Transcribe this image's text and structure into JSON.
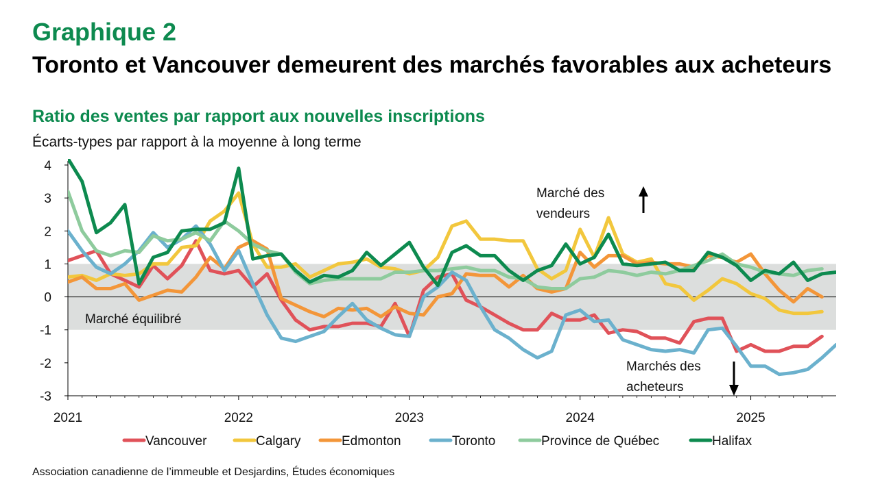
{
  "header": {
    "label": "Graphique 2",
    "title": "Toronto et Vancouver demeurent des marchés favorables aux acheteurs",
    "subtitle": "Ratio des ventes par rapport aux nouvelles inscriptions",
    "unit": "Écarts-types par rapport à la moyenne à long terme"
  },
  "source": "Association canadienne de l’immeuble et Desjardins, Études économiques",
  "chart_data": {
    "type": "line",
    "x_start": "2021-01",
    "frequency": "monthly",
    "x_ticks": [
      "2021",
      "2022",
      "2023",
      "2024",
      "2025"
    ],
    "y_ticks": [
      "4",
      "3",
      "2",
      "1",
      "0",
      "-1",
      "-2",
      "-3"
    ],
    "ylim": [
      -3,
      4
    ],
    "band": {
      "from": -1,
      "to": 1,
      "label": "Marché équilibré",
      "color": "#dcdedd"
    },
    "annotations": {
      "sellers": [
        "Marché des",
        "vendeurs"
      ],
      "buyers": [
        "Marchés des",
        "acheteurs"
      ]
    },
    "legend_position": "bottom",
    "series": [
      {
        "name": "Vancouver",
        "color": "#e05259",
        "values": [
          1.1,
          1.25,
          1.4,
          0.7,
          0.5,
          0.3,
          0.95,
          0.55,
          0.95,
          1.7,
          0.8,
          0.7,
          0.8,
          0.3,
          0.7,
          -0.1,
          -0.7,
          -1.0,
          -0.9,
          -0.9,
          -0.8,
          -0.8,
          -0.9,
          -0.2,
          -1.2,
          0.2,
          0.6,
          0.7,
          -0.1,
          -0.3,
          -0.55,
          -0.8,
          -1.0,
          -1.0,
          -0.5,
          -0.7,
          -0.7,
          -0.55,
          -1.1,
          -1.0,
          -1.05,
          -1.25,
          -1.25,
          -1.4,
          -0.75,
          -0.65,
          -0.65,
          -1.65,
          -1.45,
          -1.65,
          -1.65,
          -1.5,
          -1.5,
          -1.2
        ]
      },
      {
        "name": "Calgary",
        "color": "#f2c73d",
        "values": [
          0.6,
          0.65,
          0.5,
          0.7,
          0.65,
          0.7,
          1.0,
          1.0,
          1.5,
          1.55,
          2.3,
          2.6,
          3.15,
          1.6,
          0.9,
          0.9,
          1.0,
          0.6,
          0.8,
          1.0,
          1.05,
          1.15,
          0.9,
          0.85,
          0.7,
          0.8,
          1.2,
          2.15,
          2.3,
          1.75,
          1.75,
          1.7,
          1.7,
          0.85,
          0.55,
          0.8,
          2.05,
          1.2,
          2.4,
          1.3,
          1.05,
          1.15,
          0.4,
          0.3,
          -0.1,
          0.2,
          0.55,
          0.4,
          0.1,
          -0.05,
          -0.4,
          -0.5,
          -0.5,
          -0.45
        ]
      },
      {
        "name": "Edmonton",
        "color": "#f39639",
        "values": [
          0.45,
          0.6,
          0.25,
          0.25,
          0.4,
          -0.1,
          0.05,
          0.2,
          0.15,
          0.6,
          1.2,
          0.85,
          1.5,
          1.7,
          1.45,
          -0.05,
          -0.25,
          -0.45,
          -0.6,
          -0.35,
          -0.4,
          -0.35,
          -0.6,
          -0.3,
          -0.5,
          -0.55,
          0.0,
          0.1,
          0.7,
          0.65,
          0.65,
          0.3,
          0.65,
          0.25,
          0.15,
          0.25,
          1.35,
          0.9,
          1.25,
          1.25,
          1.0,
          1.05,
          1.0,
          1.0,
          0.9,
          1.25,
          1.2,
          1.05,
          1.3,
          0.7,
          0.2,
          -0.15,
          0.25,
          0.0
        ]
      },
      {
        "name": "Toronto",
        "color": "#6bb1cd",
        "values": [
          2.0,
          1.4,
          0.9,
          0.7,
          1.0,
          1.4,
          1.95,
          1.5,
          1.75,
          2.15,
          1.6,
          0.8,
          1.4,
          0.4,
          -0.55,
          -1.25,
          -1.35,
          -1.2,
          -1.05,
          -0.6,
          -0.2,
          -0.7,
          -0.95,
          -1.15,
          -1.2,
          0.0,
          0.3,
          0.75,
          0.5,
          -0.3,
          -1.0,
          -1.25,
          -1.6,
          -1.85,
          -1.65,
          -0.55,
          -0.4,
          -0.75,
          -0.7,
          -1.3,
          -1.45,
          -1.6,
          -1.65,
          -1.6,
          -1.7,
          -1.0,
          -0.95,
          -1.5,
          -2.1,
          -2.1,
          -2.35,
          -2.3,
          -2.2,
          -1.85,
          -1.45
        ]
      },
      {
        "name": "Province de Québec",
        "color": "#8ecb9d",
        "values": [
          3.2,
          2.0,
          1.4,
          1.25,
          1.4,
          1.35,
          1.85,
          1.7,
          1.75,
          1.95,
          1.7,
          2.3,
          2.0,
          1.6,
          1.4,
          1.3,
          0.75,
          0.4,
          0.5,
          0.55,
          0.55,
          0.55,
          0.55,
          0.75,
          0.75,
          0.8,
          0.8,
          0.85,
          0.9,
          0.8,
          0.8,
          0.6,
          0.55,
          0.3,
          0.25,
          0.25,
          0.55,
          0.6,
          0.8,
          0.75,
          0.65,
          0.75,
          0.7,
          0.8,
          0.95,
          1.1,
          1.3,
          1.0,
          0.9,
          0.75,
          0.7,
          0.65,
          0.8,
          0.85
        ]
      },
      {
        "name": "Halifax",
        "color": "#0d8a4f",
        "values": [
          4.2,
          3.5,
          1.95,
          2.25,
          2.8,
          0.4,
          1.2,
          1.35,
          2.0,
          2.05,
          2.05,
          2.25,
          3.9,
          1.15,
          1.25,
          1.3,
          0.8,
          0.45,
          0.65,
          0.6,
          0.8,
          1.35,
          0.95,
          1.3,
          1.65,
          0.9,
          0.35,
          1.35,
          1.55,
          1.25,
          1.25,
          0.8,
          0.5,
          0.8,
          0.95,
          1.6,
          1.0,
          1.2,
          1.9,
          1.0,
          0.95,
          1.0,
          1.05,
          0.8,
          0.8,
          1.35,
          1.2,
          0.95,
          0.5,
          0.8,
          0.7,
          1.05,
          0.5,
          0.7,
          0.75
        ]
      }
    ]
  }
}
